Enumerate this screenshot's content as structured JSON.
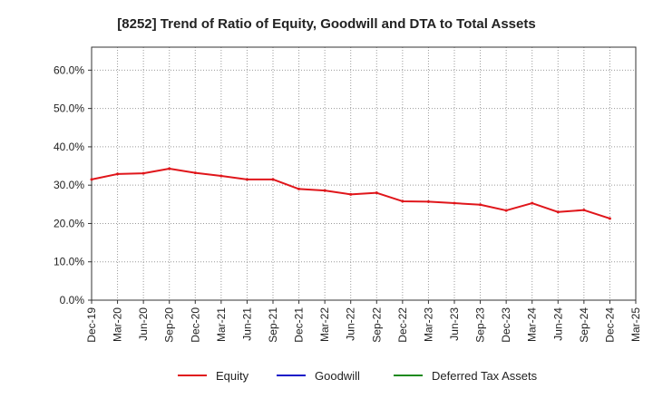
{
  "chart_data": {
    "type": "line",
    "title": "[8252]  Trend of Ratio of Equity, Goodwill and DTA to Total Assets",
    "xlabel": "",
    "ylabel": "",
    "ylim": [
      0,
      66
    ],
    "y_ticks": [
      0,
      10,
      20,
      30,
      40,
      50,
      60
    ],
    "y_tick_labels": [
      "0.0%",
      "10.0%",
      "20.0%",
      "30.0%",
      "40.0%",
      "50.0%",
      "60.0%"
    ],
    "x_tick_labels": [
      "Dec-19",
      "Mar-20",
      "Jun-20",
      "Sep-20",
      "Dec-20",
      "Mar-21",
      "Jun-21",
      "Sep-21",
      "Dec-21",
      "Mar-22",
      "Jun-22",
      "Sep-22",
      "Dec-22",
      "Mar-23",
      "Jun-23",
      "Sep-23",
      "Dec-23",
      "Mar-24",
      "Jun-24",
      "Sep-24",
      "Dec-24",
      "Mar-25"
    ],
    "grid": true,
    "legend_position": "bottom",
    "series": [
      {
        "name": "Equity",
        "color": "#e0161b",
        "values": [
          31.5,
          32.9,
          33.1,
          34.3,
          33.2,
          32.4,
          31.5,
          31.5,
          29.0,
          28.6,
          27.6,
          28.0,
          25.8,
          25.7,
          25.3,
          24.9,
          23.4,
          25.3,
          23.0,
          23.5,
          21.3,
          null
        ]
      },
      {
        "name": "Goodwill",
        "color": "#1616c8",
        "values": []
      },
      {
        "name": "Deferred Tax Assets",
        "color": "#1e8a1e",
        "values": []
      }
    ]
  }
}
